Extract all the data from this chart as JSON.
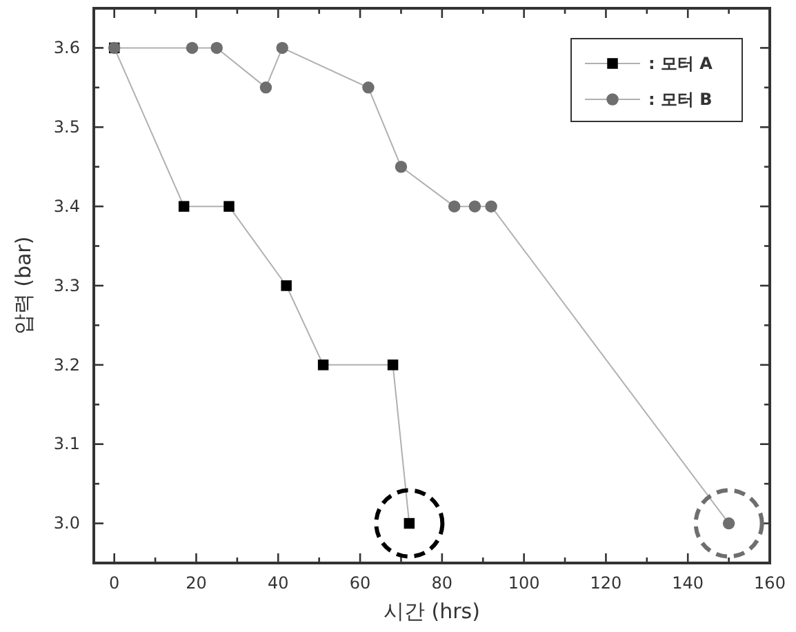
{
  "chart_data": {
    "type": "line",
    "xlabel": "시간 (hrs)",
    "ylabel": "압력 (bar)",
    "xlim": [
      -5,
      160
    ],
    "ylim": [
      2.95,
      3.65
    ],
    "xticks": [
      0,
      {
        "value": 10,
        "label": null
      },
      20,
      {
        "value": 30,
        "label": null
      },
      40,
      {
        "value": 50,
        "label": null
      },
      60,
      {
        "value": 70,
        "label": null
      },
      80,
      {
        "value": 90,
        "label": null
      },
      100,
      {
        "value": 110,
        "label": null
      },
      120,
      {
        "value": 130,
        "label": null
      },
      140,
      {
        "value": 150,
        "label": null
      },
      160
    ],
    "yticks": [
      {
        "value": 3.0,
        "label": "3.0"
      },
      {
        "value": 3.05,
        "label": null
      },
      3.1,
      {
        "value": 3.15,
        "label": null
      },
      3.2,
      {
        "value": 3.25,
        "label": null
      },
      3.3,
      {
        "value": 3.35,
        "label": null
      },
      3.4,
      {
        "value": 3.45,
        "label": null
      },
      3.5,
      {
        "value": 3.55,
        "label": null
      },
      3.6
    ],
    "grid": false,
    "legend": "top right",
    "line_style": "solid",
    "series": [
      {
        "name": ": 모터 A",
        "color": "#000000",
        "marker": "square",
        "x": [
          0,
          17,
          28,
          42,
          51,
          68,
          72
        ],
        "values": [
          3.6,
          3.4,
          3.4,
          3.3,
          3.2,
          3.2,
          3.0
        ]
      },
      {
        "name": ": 모터 B",
        "color": "#6e6e6e",
        "marker": "circle",
        "x": [
          0,
          19,
          25,
          37,
          41,
          62,
          70,
          83,
          88,
          92,
          150
        ],
        "values": [
          3.6,
          3.6,
          3.6,
          3.55,
          3.6,
          3.55,
          3.45,
          3.4,
          3.4,
          3.4,
          3.0
        ]
      }
    ]
  }
}
